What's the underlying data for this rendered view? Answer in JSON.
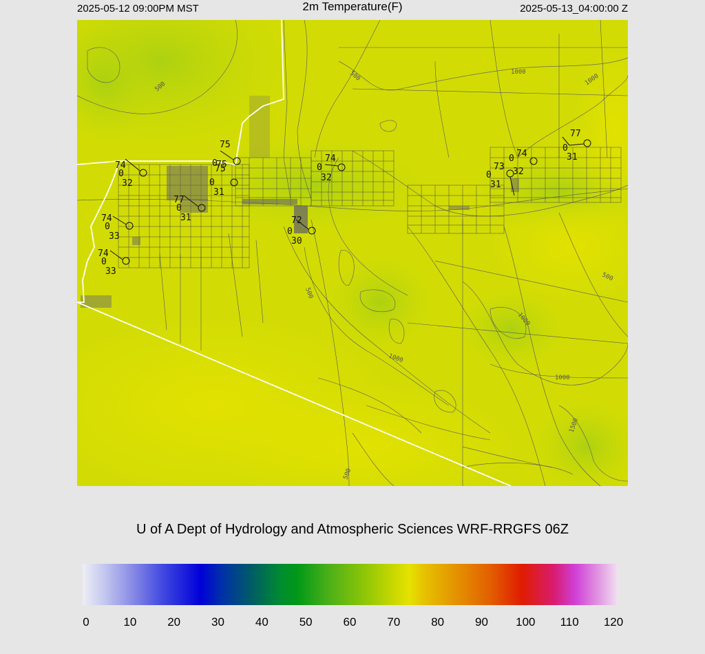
{
  "header": {
    "local_time": "2025-05-12 09:00PM MST",
    "title": "2m Temperature(F)",
    "utc_time": "2025-05-13_04:00:00 Z"
  },
  "credit": "U of A Dept of Hydrology and Atmospheric Sciences WRF-RRGFS 06Z",
  "colorbar": {
    "ticks": [
      "0",
      "10",
      "20",
      "30",
      "40",
      "50",
      "60",
      "70",
      "80",
      "90",
      "100",
      "110",
      "120"
    ],
    "range": [
      0,
      120
    ],
    "colors": [
      "#eeeef6",
      "#0000d8",
      "#006060",
      "#009818",
      "#88c408",
      "#e6e200",
      "#e26000",
      "#e01c00",
      "#d040d8",
      "#f2e2f2"
    ]
  },
  "map": {
    "contour_labels": [
      "500",
      "500",
      "500",
      "500",
      "500",
      "1000",
      "1000",
      "1000",
      "1000",
      "1000",
      "1500"
    ],
    "stations": [
      {
        "temp": "74",
        "wind": "0",
        "dew": "32"
      },
      {
        "temp": "75",
        "wind": "0",
        "dew": "75"
      },
      {
        "temp": "75",
        "wind": "0",
        "dew": "31"
      },
      {
        "temp": "77",
        "wind": "0",
        "dew": "31"
      },
      {
        "temp": "74",
        "wind": "0",
        "dew": "33"
      },
      {
        "temp": "74",
        "wind": "0",
        "dew": "33"
      },
      {
        "temp": "72",
        "wind": "0",
        "dew": "30"
      },
      {
        "temp": "74",
        "wind": "0",
        "dew": "32"
      },
      {
        "temp": "73",
        "wind": "0",
        "dew": "31"
      },
      {
        "temp": "74",
        "wind": "0",
        "dew": "32"
      },
      {
        "temp": "77",
        "wind": "0",
        "dew": "31"
      }
    ]
  }
}
